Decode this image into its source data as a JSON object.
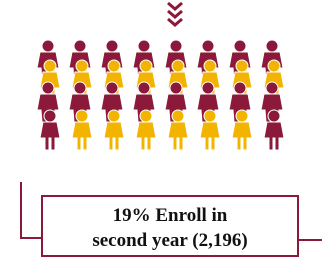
{
  "box": {
    "lines": [
      "19% Enroll in",
      "second year (2,196)"
    ]
  }
}
